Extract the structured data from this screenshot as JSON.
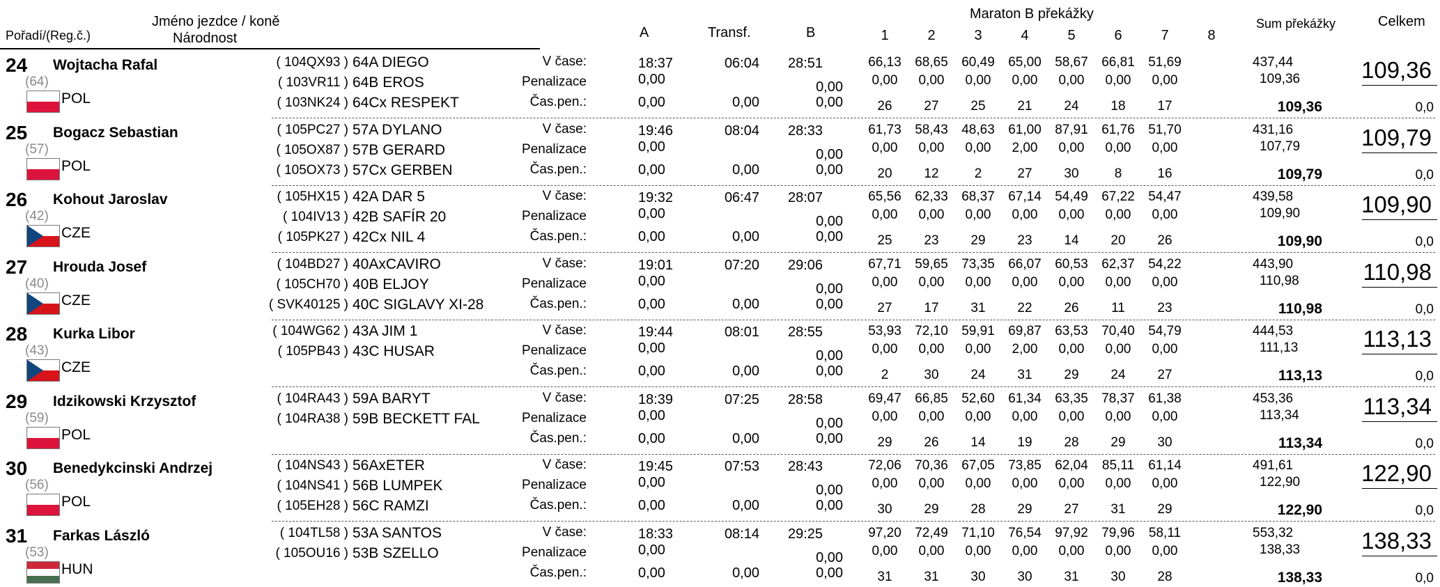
{
  "header": {
    "poradi": "Pořadí/(Reg.č.)",
    "jmeno": "Jméno jezdce / koně",
    "narodnost": "Národnost",
    "a": "A",
    "transf": "Transf.",
    "b": "B",
    "maraton": "Maraton B překážky",
    "obstacles": [
      "1",
      "2",
      "3",
      "4",
      "5",
      "6",
      "7",
      "8"
    ],
    "sum": "Sum překážky",
    "celkem": "Celkem"
  },
  "labels": {
    "vcase": "V čase:",
    "penalizace": "Penalizace",
    "caspen": "Čas.pen.:"
  },
  "rows": [
    {
      "rank": "24",
      "name": "Wojtacha Rafal",
      "reg": "(64)",
      "nat": "POL",
      "flag": "pol",
      "horses": [
        {
          "reg": "( 104QX93 )",
          "name": "64A DIEGO"
        },
        {
          "reg": "( 103VR11 )",
          "name": "64B  EROS"
        },
        {
          "reg": "( 103NK24 )",
          "name": "64Cx RESPEKT"
        }
      ],
      "a": [
        "18:37",
        "0,00",
        "0,00"
      ],
      "transf": [
        "06:04",
        "",
        "0,00"
      ],
      "b": [
        "28:51",
        "0,00",
        "0,00"
      ],
      "obs_time": [
        "66,13",
        "68,65",
        "60,49",
        "65,00",
        "58,67",
        "66,81",
        "51,69"
      ],
      "obs_pen": [
        "0,00",
        "0,00",
        "0,00",
        "0,00",
        "0,00",
        "0,00",
        "0,00"
      ],
      "obs_rank": [
        "26",
        "27",
        "25",
        "21",
        "24",
        "18",
        "17"
      ],
      "sum1": "437,44",
      "sum2": "109,36",
      "sum_bold": "109,36",
      "total": "109,36",
      "total_pen": "0,0"
    },
    {
      "rank": "25",
      "name": "Bogacz Sebastian",
      "reg": "(57)",
      "nat": "POL",
      "flag": "pol",
      "horses": [
        {
          "reg": "( 105PC27 )",
          "name": "57A DYLANO"
        },
        {
          "reg": "( 105OX87 )",
          "name": "57B  GERARD"
        },
        {
          "reg": "( 105OX73 )",
          "name": "57Cx GERBEN"
        }
      ],
      "a": [
        "19:46",
        "0,00",
        "0,00"
      ],
      "transf": [
        "08:04",
        "",
        "0,00"
      ],
      "b": [
        "28:33",
        "0,00",
        "0,00"
      ],
      "obs_time": [
        "61,73",
        "58,43",
        "48,63",
        "61,00",
        "87,91",
        "61,76",
        "51,70"
      ],
      "obs_pen": [
        "0,00",
        "0,00",
        "0,00",
        "2,00",
        "0,00",
        "0,00",
        "0,00"
      ],
      "obs_rank": [
        "20",
        "12",
        "2",
        "27",
        "30",
        "8",
        "16"
      ],
      "sum1": "431,16",
      "sum2": "107,79",
      "sum_bold": "109,79",
      "total": "109,79",
      "total_pen": "0,0"
    },
    {
      "rank": "26",
      "name": "Kohout Jaroslav",
      "reg": "(42)",
      "nat": "CZE",
      "flag": "cze",
      "horses": [
        {
          "reg": "( 105HX15 )",
          "name": "42A DAR 5"
        },
        {
          "reg": "( 104IV13 )",
          "name": "42B  SAFÍR 20"
        },
        {
          "reg": "( 105PK27 )",
          "name": "42Cx NIL 4"
        }
      ],
      "a": [
        "19:32",
        "0,00",
        "0,00"
      ],
      "transf": [
        "06:47",
        "",
        "0,00"
      ],
      "b": [
        "28:07",
        "0,00",
        "0,00"
      ],
      "obs_time": [
        "65,56",
        "62,33",
        "68,37",
        "67,14",
        "54,49",
        "67,22",
        "54,47"
      ],
      "obs_pen": [
        "0,00",
        "0,00",
        "0,00",
        "0,00",
        "0,00",
        "0,00",
        "0,00"
      ],
      "obs_rank": [
        "25",
        "23",
        "29",
        "23",
        "14",
        "20",
        "26"
      ],
      "sum1": "439,58",
      "sum2": "109,90",
      "sum_bold": "109,90",
      "total": "109,90",
      "total_pen": "0,0"
    },
    {
      "rank": "27",
      "name": "Hrouda Josef",
      "reg": "(40)",
      "nat": "CZE",
      "flag": "cze",
      "horses": [
        {
          "reg": "( 104BD27 )",
          "name": "40AxCAVIRO"
        },
        {
          "reg": "( 105CH70 )",
          "name": "40B  ELJOY"
        },
        {
          "reg": "( SVK40125 )",
          "name": "40C  SIGLAVY XI-28"
        }
      ],
      "a": [
        "19:01",
        "0,00",
        "0,00"
      ],
      "transf": [
        "07:20",
        "",
        "0,00"
      ],
      "b": [
        "29:06",
        "0,00",
        "0,00"
      ],
      "obs_time": [
        "67,71",
        "59,65",
        "73,35",
        "66,07",
        "60,53",
        "62,37",
        "54,22"
      ],
      "obs_pen": [
        "0,00",
        "0,00",
        "0,00",
        "0,00",
        "0,00",
        "0,00",
        "0,00"
      ],
      "obs_rank": [
        "27",
        "17",
        "31",
        "22",
        "26",
        "11",
        "23"
      ],
      "sum1": "443,90",
      "sum2": "110,98",
      "sum_bold": "110,98",
      "total": "110,98",
      "total_pen": "0,0"
    },
    {
      "rank": "28",
      "name": "Kurka Libor",
      "reg": "(43)",
      "nat": "CZE",
      "flag": "cze",
      "horses": [
        {
          "reg": "( 104WG62 )",
          "name": "43A JIM 1"
        },
        {
          "reg": "( 105PB43 )",
          "name": "43C  HUSAR"
        }
      ],
      "a": [
        "19:44",
        "0,00",
        "0,00"
      ],
      "transf": [
        "08:01",
        "",
        "0,00"
      ],
      "b": [
        "28:55",
        "0,00",
        "0,00"
      ],
      "obs_time": [
        "53,93",
        "72,10",
        "59,91",
        "69,87",
        "63,53",
        "70,40",
        "54,79"
      ],
      "obs_pen": [
        "0,00",
        "0,00",
        "0,00",
        "2,00",
        "0,00",
        "0,00",
        "0,00"
      ],
      "obs_rank": [
        "2",
        "30",
        "24",
        "31",
        "29",
        "24",
        "27"
      ],
      "sum1": "444,53",
      "sum2": "111,13",
      "sum_bold": "113,13",
      "total": "113,13",
      "total_pen": "0,0"
    },
    {
      "rank": "29",
      "name": "Idzikowski Krzysztof",
      "reg": "(59)",
      "nat": "POL",
      "flag": "pol",
      "horses": [
        {
          "reg": "( 104RA43 )",
          "name": "59A BARYT"
        },
        {
          "reg": "( 104RA38 )",
          "name": "59B  BECKETT FAL"
        }
      ],
      "a": [
        "18:39",
        "0,00",
        "0,00"
      ],
      "transf": [
        "07:25",
        "",
        "0,00"
      ],
      "b": [
        "28:58",
        "0,00",
        "0,00"
      ],
      "obs_time": [
        "69,47",
        "66,85",
        "52,60",
        "61,34",
        "63,35",
        "78,37",
        "61,38"
      ],
      "obs_pen": [
        "0,00",
        "0,00",
        "0,00",
        "0,00",
        "0,00",
        "0,00",
        "0,00"
      ],
      "obs_rank": [
        "29",
        "26",
        "14",
        "19",
        "28",
        "29",
        "30"
      ],
      "sum1": "453,36",
      "sum2": "113,34",
      "sum_bold": "113,34",
      "total": "113,34",
      "total_pen": "0,0"
    },
    {
      "rank": "30",
      "name": "Benedykcinski Andrzej",
      "reg": "(56)",
      "nat": "POL",
      "flag": "pol",
      "horses": [
        {
          "reg": "( 104NS43 )",
          "name": "56AxETER"
        },
        {
          "reg": "( 104NS41 )",
          "name": "56B  LUMPEK"
        },
        {
          "reg": "( 105EH28 )",
          "name": "56C  RAMZI"
        }
      ],
      "a": [
        "19:45",
        "0,00",
        "0,00"
      ],
      "transf": [
        "07:53",
        "",
        "0,00"
      ],
      "b": [
        "28:43",
        "0,00",
        "0,00"
      ],
      "obs_time": [
        "72,06",
        "70,36",
        "67,05",
        "73,85",
        "62,04",
        "85,11",
        "61,14"
      ],
      "obs_pen": [
        "0,00",
        "0,00",
        "0,00",
        "0,00",
        "0,00",
        "0,00",
        "0,00"
      ],
      "obs_rank": [
        "30",
        "29",
        "28",
        "29",
        "27",
        "31",
        "29"
      ],
      "sum1": "491,61",
      "sum2": "122,90",
      "sum_bold": "122,90",
      "total": "122,90",
      "total_pen": "0,0"
    },
    {
      "rank": "31",
      "name": "Farkas László",
      "reg": "(53)",
      "nat": "HUN",
      "flag": "hun",
      "horses": [
        {
          "reg": "( 104TL58 )",
          "name": "53A SANTOS"
        },
        {
          "reg": "( 105OU16 )",
          "name": "53B  SZELLO"
        }
      ],
      "a": [
        "18:33",
        "0,00",
        "0,00"
      ],
      "transf": [
        "08:14",
        "",
        "0,00"
      ],
      "b": [
        "29:25",
        "0,00",
        "0,00"
      ],
      "obs_time": [
        "97,20",
        "72,49",
        "71,10",
        "76,54",
        "97,92",
        "79,96",
        "58,11"
      ],
      "obs_pen": [
        "0,00",
        "0,00",
        "0,00",
        "0,00",
        "0,00",
        "0,00",
        "0,00"
      ],
      "obs_rank": [
        "31",
        "31",
        "30",
        "30",
        "31",
        "30",
        "28"
      ],
      "sum1": "553,32",
      "sum2": "138,33",
      "sum_bold": "138,33",
      "total": "138,33",
      "total_pen": "0,0"
    }
  ]
}
